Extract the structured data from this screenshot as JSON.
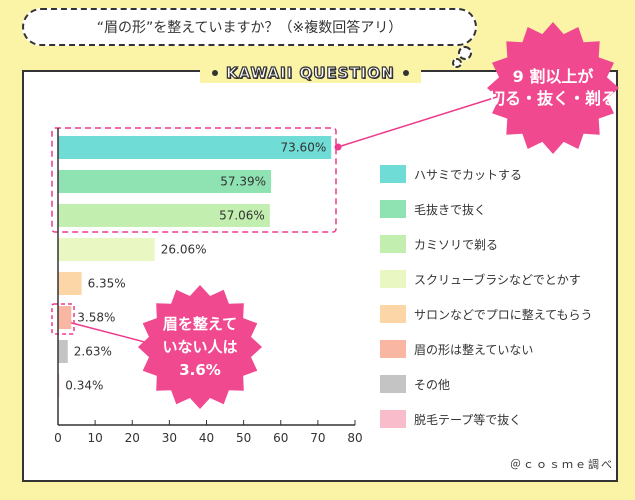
{
  "question": {
    "text": "“眉の形”を整えていますか？（※複数回答アリ）"
  },
  "panel": {
    "title": "KAWAII QUESTION"
  },
  "callouts": {
    "top_line1": "9 割以上が",
    "top_line2": "切る・抜く・剃る",
    "bottom_line1": "眉を整えて",
    "bottom_line2": "いない人は",
    "bottom_line3": "3.6%"
  },
  "credit": "＠ｃｏｓｍｅ調べ",
  "colors": {
    "pink": "#ee3a8c",
    "callout_pink": "#f0498f"
  },
  "chart_data": {
    "type": "bar",
    "orientation": "horizontal",
    "categories": [
      "ハサミでカットする",
      "毛抜きで抜く",
      "カミソリで剃る",
      "スクリューブラシなどでとかす",
      "サロンなどでプロに整えてもらう",
      "眉の形は整えていない",
      "その他",
      "脱毛テープ等で抜く"
    ],
    "values": [
      73.6,
      57.39,
      57.06,
      26.06,
      6.35,
      3.58,
      2.63,
      0.34
    ],
    "value_labels": [
      "73.60%",
      "57.39%",
      "57.06%",
      "26.06%",
      "6.35%",
      "3.58%",
      "2.63%",
      "0.34%"
    ],
    "colors": [
      "#6fdcd5",
      "#8fe2b2",
      "#c2eeaf",
      "#e9f8c2",
      "#fdd6a8",
      "#f8b6a3",
      "#c4c4c4",
      "#f8bccb"
    ],
    "xlim": [
      0,
      80
    ],
    "xticks": [
      "0",
      "10",
      "20",
      "30",
      "40",
      "50",
      "60",
      "70",
      "80"
    ],
    "legend": "right",
    "grid": false
  }
}
